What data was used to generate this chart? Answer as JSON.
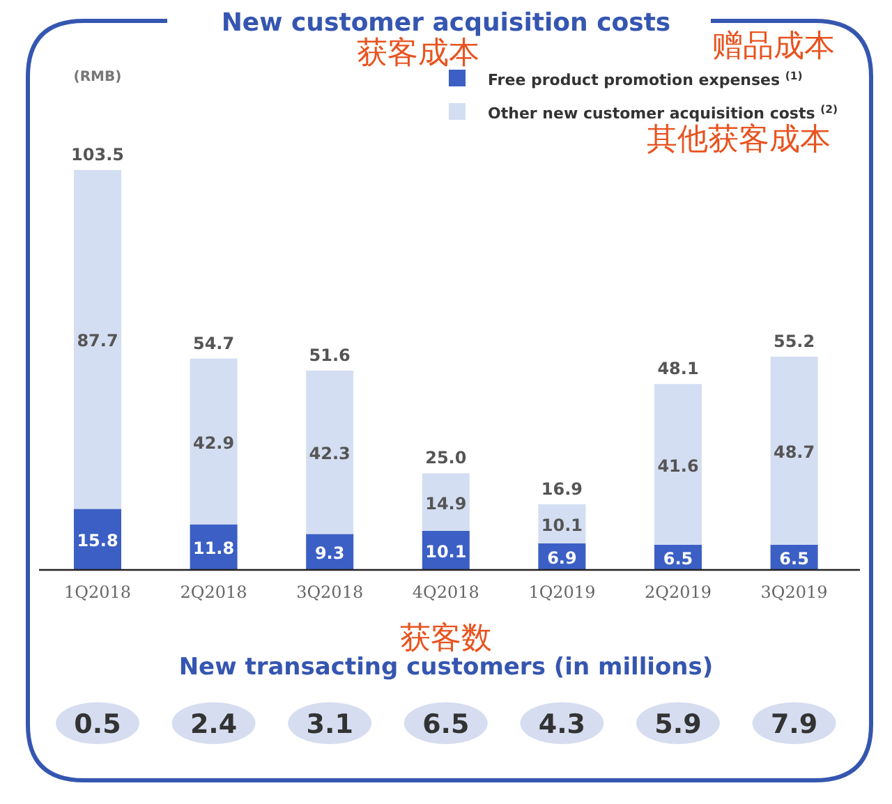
{
  "chart_data": [
    {
      "type": "bar",
      "title": "New customer acquisition costs",
      "ylabel": "(RMB)",
      "stacked": true,
      "data_labels": true,
      "legend": "top right",
      "categories": [
        "1Q2018",
        "2Q2018",
        "3Q2018",
        "4Q2018",
        "1Q2019",
        "2Q2019",
        "3Q2019"
      ],
      "series": [
        {
          "name": "Free product promotion expenses $^{(1)}$",
          "color": "#3b5fc4",
          "values": [
            15.8,
            11.8,
            9.3,
            10.1,
            6.9,
            6.5,
            6.5
          ]
        },
        {
          "name": "Other new customer acquisition costs $^{(2)}$",
          "color": "#d4def2",
          "values": [
            87.7,
            42.9,
            42.3,
            14.9,
            10.1,
            41.6,
            48.7
          ]
        }
      ],
      "totals": [
        "103.5",
        "54.7",
        "51.6",
        "25.0",
        "16.9",
        "48.1",
        "55.2"
      ],
      "annotations": [
        "获客成本",
        "赠品成本",
        "其他获客成本"
      ]
    },
    {
      "type": "other",
      "title": "New transacting customers (in millions)",
      "values": [
        0.5,
        2.4,
        3.1,
        6.5,
        4.3,
        5.9,
        7.9
      ],
      "data_labels": true,
      "annotations": [
        "获客数"
      ]
    }
  ]
}
